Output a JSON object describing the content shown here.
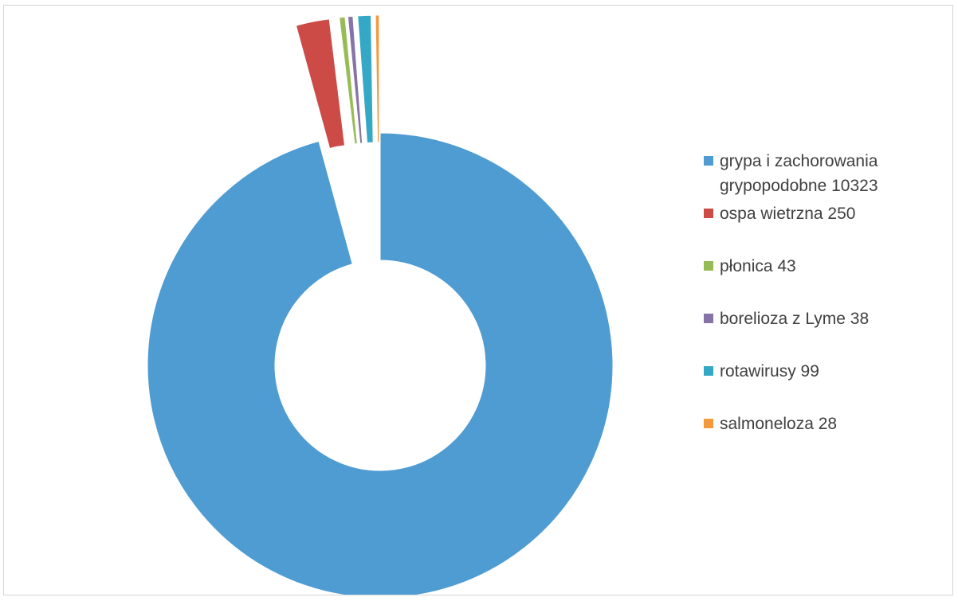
{
  "chart_data": {
    "type": "pie",
    "variant": "donut",
    "exploded": true,
    "legend_position": "right",
    "series": [
      {
        "label": "grypa i zachorowania grypopodobne 10323",
        "value": 10323,
        "color": "#4e9cd2"
      },
      {
        "label": "ospa wietrzna 250",
        "value": 250,
        "color": "#cc4b47"
      },
      {
        "label": "płonica 43",
        "value": 43,
        "color": "#98bc55"
      },
      {
        "label": "borelioza z Lyme 38",
        "value": 38,
        "color": "#8673a8"
      },
      {
        "label": "rotawirusy 99",
        "value": 99,
        "color": "#34a8c5"
      },
      {
        "label": "salmoneloza 28",
        "value": 28,
        "color": "#f49a3c"
      }
    ]
  }
}
